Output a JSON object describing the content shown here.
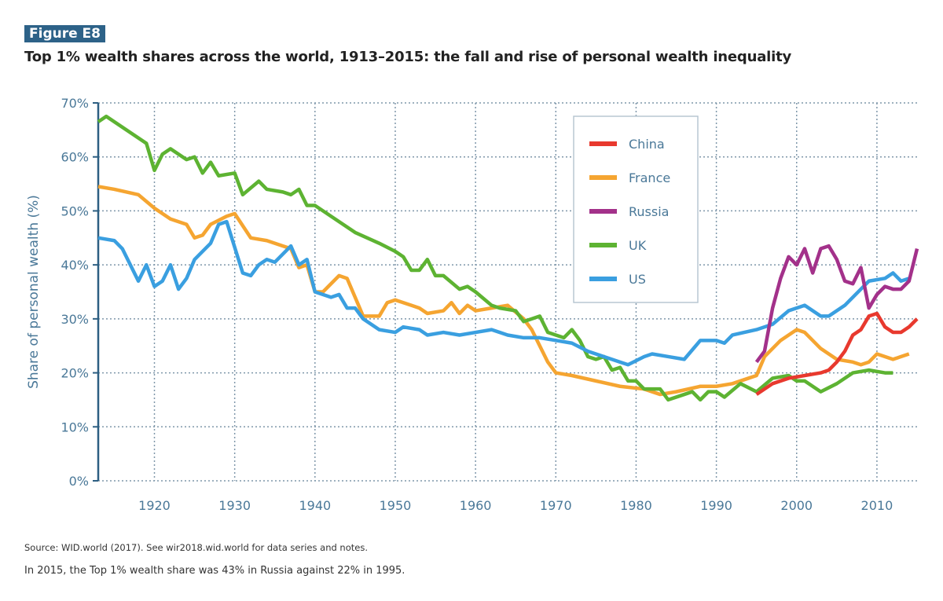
{
  "figure_label": "Figure E8",
  "chart_data": {
    "type": "line",
    "title": "Top 1% wealth shares across the world, 1913–2015: the fall and rise of personal wealth inequality",
    "xlabel": "",
    "ylabel": "Share of personal wealth (%)",
    "xlim": [
      1913,
      2015
    ],
    "ylim": [
      0,
      70
    ],
    "xticks": [
      1920,
      1930,
      1940,
      1950,
      1960,
      1970,
      1980,
      1990,
      2000,
      2010
    ],
    "yticks": [
      0,
      10,
      20,
      30,
      40,
      50,
      60,
      70
    ],
    "ytick_labels": [
      "0%",
      "10%",
      "20%",
      "30%",
      "40%",
      "50%",
      "60%",
      "70%"
    ],
    "grid": true,
    "legend_position": "top-right",
    "series": [
      {
        "name": "China",
        "color": "#e8392e",
        "points": [
          [
            1995,
            16
          ],
          [
            1997,
            18
          ],
          [
            1999,
            19
          ],
          [
            2001,
            19.5
          ],
          [
            2003,
            20
          ],
          [
            2004,
            20.5
          ],
          [
            2005,
            22
          ],
          [
            2006,
            24
          ],
          [
            2007,
            27
          ],
          [
            2008,
            28
          ],
          [
            2009,
            30.5
          ],
          [
            2010,
            31
          ],
          [
            2011,
            28.5
          ],
          [
            2012,
            27.5
          ],
          [
            2013,
            27.5
          ],
          [
            2014,
            28.5
          ],
          [
            2015,
            30
          ]
        ]
      },
      {
        "name": "France",
        "color": "#f5a531",
        "points": [
          [
            1913,
            54.5
          ],
          [
            1915,
            54
          ],
          [
            1918,
            53
          ],
          [
            1920,
            50.5
          ],
          [
            1922,
            48.5
          ],
          [
            1924,
            47.5
          ],
          [
            1925,
            45
          ],
          [
            1926,
            45.5
          ],
          [
            1927,
            47.5
          ],
          [
            1929,
            49
          ],
          [
            1930,
            49.5
          ],
          [
            1932,
            45
          ],
          [
            1934,
            44.5
          ],
          [
            1936,
            43.5
          ],
          [
            1937,
            43
          ],
          [
            1938,
            39.5
          ],
          [
            1939,
            40
          ],
          [
            1940,
            35
          ],
          [
            1941,
            35
          ],
          [
            1943,
            38
          ],
          [
            1944,
            37.5
          ],
          [
            1945,
            34
          ],
          [
            1946,
            30.5
          ],
          [
            1948,
            30.5
          ],
          [
            1949,
            33
          ],
          [
            1950,
            33.5
          ],
          [
            1952,
            32.5
          ],
          [
            1953,
            32
          ],
          [
            1954,
            31
          ],
          [
            1956,
            31.5
          ],
          [
            1957,
            33
          ],
          [
            1958,
            31
          ],
          [
            1959,
            32.5
          ],
          [
            1960,
            31.5
          ],
          [
            1962,
            32
          ],
          [
            1964,
            32.5
          ],
          [
            1966,
            30
          ],
          [
            1967,
            28
          ],
          [
            1969,
            22
          ],
          [
            1970,
            20
          ],
          [
            1972,
            19.5
          ],
          [
            1975,
            18.5
          ],
          [
            1978,
            17.5
          ],
          [
            1981,
            17
          ],
          [
            1983,
            16
          ],
          [
            1985,
            16.5
          ],
          [
            1988,
            17.5
          ],
          [
            1990,
            17.5
          ],
          [
            1992,
            18
          ],
          [
            1994,
            19
          ],
          [
            1995,
            19.5
          ],
          [
            1996,
            23
          ],
          [
            1998,
            26
          ],
          [
            2000,
            28
          ],
          [
            2001,
            27.5
          ],
          [
            2003,
            24.5
          ],
          [
            2005,
            22.5
          ],
          [
            2007,
            22
          ],
          [
            2008,
            21.5
          ],
          [
            2009,
            22
          ],
          [
            2010,
            23.5
          ],
          [
            2012,
            22.5
          ],
          [
            2014,
            23.5
          ]
        ]
      },
      {
        "name": "Russia",
        "color": "#a3318a",
        "points": [
          [
            1995,
            22
          ],
          [
            1996,
            24
          ],
          [
            1997,
            32
          ],
          [
            1998,
            37.5
          ],
          [
            1999,
            41.5
          ],
          [
            2000,
            40
          ],
          [
            2001,
            43
          ],
          [
            2002,
            38.5
          ],
          [
            2003,
            43
          ],
          [
            2004,
            43.5
          ],
          [
            2005,
            41
          ],
          [
            2006,
            37
          ],
          [
            2007,
            36.5
          ],
          [
            2008,
            39.5
          ],
          [
            2009,
            32
          ],
          [
            2010,
            34.5
          ],
          [
            2011,
            36
          ],
          [
            2012,
            35.5
          ],
          [
            2013,
            35.5
          ],
          [
            2014,
            37
          ],
          [
            2015,
            43
          ]
        ]
      },
      {
        "name": "UK",
        "color": "#5db332",
        "points": [
          [
            1913,
            66.5
          ],
          [
            1914,
            67.5
          ],
          [
            1916,
            65.5
          ],
          [
            1919,
            62.5
          ],
          [
            1920,
            57.5
          ],
          [
            1921,
            60.5
          ],
          [
            1922,
            61.5
          ],
          [
            1924,
            59.5
          ],
          [
            1925,
            60
          ],
          [
            1926,
            57
          ],
          [
            1927,
            59
          ],
          [
            1928,
            56.5
          ],
          [
            1930,
            57
          ],
          [
            1931,
            53
          ],
          [
            1933,
            55.5
          ],
          [
            1934,
            54
          ],
          [
            1936,
            53.5
          ],
          [
            1937,
            53
          ],
          [
            1938,
            54
          ],
          [
            1939,
            51
          ],
          [
            1940,
            51
          ],
          [
            1945,
            46
          ],
          [
            1948,
            44
          ],
          [
            1950,
            42.5
          ],
          [
            1951,
            41.5
          ],
          [
            1952,
            39
          ],
          [
            1953,
            39
          ],
          [
            1954,
            41
          ],
          [
            1955,
            38
          ],
          [
            1956,
            38
          ],
          [
            1958,
            35.5
          ],
          [
            1959,
            36
          ],
          [
            1960,
            35
          ],
          [
            1962,
            32.5
          ],
          [
            1963,
            32
          ],
          [
            1965,
            31.5
          ],
          [
            1966,
            29.5
          ],
          [
            1967,
            30
          ],
          [
            1968,
            30.5
          ],
          [
            1969,
            27.5
          ],
          [
            1970,
            27
          ],
          [
            1971,
            26.5
          ],
          [
            1972,
            28
          ],
          [
            1973,
            26
          ],
          [
            1974,
            23
          ],
          [
            1975,
            22.5
          ],
          [
            1976,
            23
          ],
          [
            1977,
            20.5
          ],
          [
            1978,
            21
          ],
          [
            1979,
            18.5
          ],
          [
            1980,
            18.5
          ],
          [
            1981,
            17
          ],
          [
            1983,
            17
          ],
          [
            1984,
            15
          ],
          [
            1986,
            16
          ],
          [
            1987,
            16.5
          ],
          [
            1988,
            15
          ],
          [
            1989,
            16.5
          ],
          [
            1990,
            16.5
          ],
          [
            1991,
            15.5
          ],
          [
            1993,
            18
          ],
          [
            1995,
            16.5
          ],
          [
            1997,
            19
          ],
          [
            1999,
            19.5
          ],
          [
            2000,
            18.5
          ],
          [
            2001,
            18.5
          ],
          [
            2003,
            16.5
          ],
          [
            2005,
            18
          ],
          [
            2007,
            20
          ],
          [
            2009,
            20.5
          ],
          [
            2011,
            20
          ],
          [
            2012,
            20
          ]
        ]
      },
      {
        "name": "US",
        "color": "#3a9fe0",
        "points": [
          [
            1913,
            45
          ],
          [
            1915,
            44.5
          ],
          [
            1916,
            43
          ],
          [
            1918,
            37
          ],
          [
            1919,
            40
          ],
          [
            1920,
            36
          ],
          [
            1921,
            37
          ],
          [
            1922,
            40
          ],
          [
            1923,
            35.5
          ],
          [
            1924,
            37.5
          ],
          [
            1925,
            41
          ],
          [
            1927,
            44
          ],
          [
            1928,
            47.5
          ],
          [
            1929,
            48
          ],
          [
            1931,
            38.5
          ],
          [
            1932,
            38
          ],
          [
            1933,
            40
          ],
          [
            1934,
            41
          ],
          [
            1935,
            40.5
          ],
          [
            1937,
            43.5
          ],
          [
            1938,
            40
          ],
          [
            1939,
            41
          ],
          [
            1940,
            35
          ],
          [
            1942,
            34
          ],
          [
            1943,
            34.5
          ],
          [
            1944,
            32
          ],
          [
            1945,
            32
          ],
          [
            1946,
            30
          ],
          [
            1948,
            28
          ],
          [
            1950,
            27.5
          ],
          [
            1951,
            28.5
          ],
          [
            1953,
            28
          ],
          [
            1954,
            27
          ],
          [
            1956,
            27.5
          ],
          [
            1958,
            27
          ],
          [
            1960,
            27.5
          ],
          [
            1962,
            28
          ],
          [
            1964,
            27
          ],
          [
            1966,
            26.5
          ],
          [
            1968,
            26.5
          ],
          [
            1970,
            26
          ],
          [
            1972,
            25.5
          ],
          [
            1974,
            24
          ],
          [
            1976,
            23
          ],
          [
            1978,
            22
          ],
          [
            1979,
            21.5
          ],
          [
            1981,
            23
          ],
          [
            1982,
            23.5
          ],
          [
            1984,
            23
          ],
          [
            1986,
            22.5
          ],
          [
            1988,
            26
          ],
          [
            1990,
            26
          ],
          [
            1991,
            25.5
          ],
          [
            1992,
            27
          ],
          [
            1995,
            28
          ],
          [
            1997,
            29
          ],
          [
            1999,
            31.5
          ],
          [
            2001,
            32.5
          ],
          [
            2003,
            30.5
          ],
          [
            2004,
            30.5
          ],
          [
            2006,
            32.5
          ],
          [
            2008,
            35.5
          ],
          [
            2009,
            37
          ],
          [
            2011,
            37.5
          ],
          [
            2012,
            38.5
          ],
          [
            2013,
            37
          ],
          [
            2014,
            37.5
          ]
        ]
      }
    ]
  },
  "source": "Source: WID.world (2017). See wir2018.wid.world for data series and notes.",
  "note": "In 2015, the Top 1% wealth share was 43% in Russia against 22% in 1995."
}
